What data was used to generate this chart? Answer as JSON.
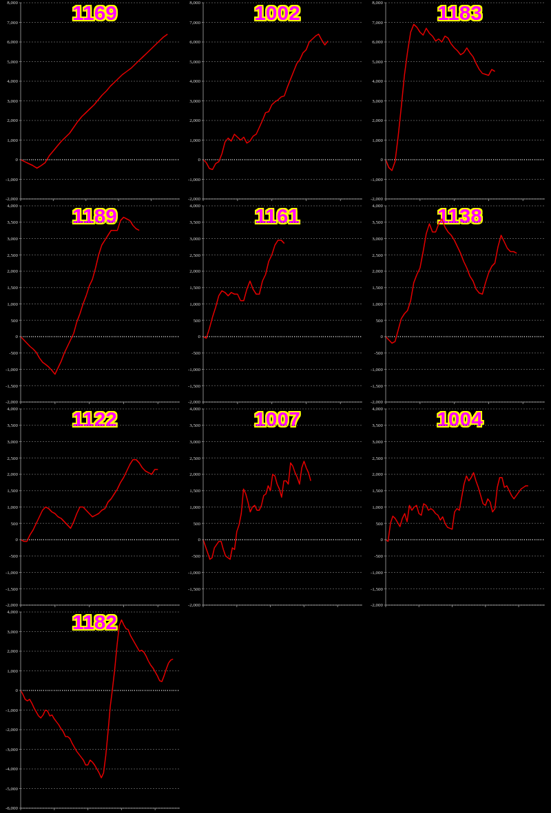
{
  "chart_data": [
    {
      "type": "line",
      "title": "1169",
      "categories": [
        null,
        null,
        null,
        null,
        null,
        null,
        null,
        null,
        null,
        null,
        null,
        null,
        null,
        null,
        null,
        null,
        null,
        null,
        null,
        null,
        null,
        null,
        null,
        null,
        null,
        null,
        null,
        null,
        null,
        null,
        null,
        null,
        null,
        null,
        null,
        null,
        null,
        null,
        null,
        null
      ],
      "series": [
        {
          "color": "#e60000",
          "values": [
            0,
            -100,
            -200,
            -300,
            -430,
            -300,
            -150,
            200,
            450,
            700,
            950,
            1150,
            1350,
            1650,
            1950,
            2200,
            2400,
            2600,
            2800,
            3050,
            3300,
            3500,
            3750,
            3950,
            4150,
            4350,
            4500,
            4650,
            4850,
            5050,
            5250,
            5450,
            5650,
            5850,
            6050,
            6250,
            6400,
            null,
            null,
            null
          ]
        }
      ],
      "ylim": [
        -2000,
        8000
      ],
      "yticks": [
        {
          "value": -2000,
          "label": "-2,000"
        },
        {
          "value": -1000,
          "label": "-1,000"
        },
        0,
        {
          "value": 1000,
          "label": "1,000"
        },
        {
          "value": 2000,
          "label": "2,000"
        },
        {
          "value": 3000,
          "label": "3,000"
        },
        {
          "value": 4000,
          "label": "4,000"
        },
        {
          "value": 5000,
          "label": "5,000"
        },
        {
          "value": 6000,
          "label": "6,000"
        },
        {
          "value": 7000,
          "label": "7,000"
        },
        {
          "value": 8000,
          "label": "8,000"
        }
      ],
      "grid": "y",
      "tick_labels": "y",
      "ref_lines": [
        {
          "axis": "y",
          "value": 0,
          "color": "#ffffff",
          "line_style": "dotted"
        }
      ]
    },
    {
      "type": "line",
      "title": "1002",
      "categories": [
        null,
        null,
        null,
        null,
        null,
        null,
        null,
        null,
        null,
        null,
        null,
        null,
        null,
        null,
        null,
        null,
        null,
        null,
        null,
        null,
        null,
        null,
        null,
        null,
        null,
        null,
        null,
        null,
        null,
        null,
        null,
        null,
        null,
        null,
        null,
        null,
        null,
        null,
        null,
        null,
        null,
        null,
        null,
        null,
        null,
        null,
        null,
        null,
        null,
        null,
        null,
        null
      ],
      "series": [
        {
          "color": "#e60000",
          "values": [
            0,
            -150,
            -450,
            -500,
            -200,
            -100,
            300,
            900,
            1100,
            950,
            1300,
            1150,
            1000,
            1150,
            850,
            950,
            1200,
            1300,
            1650,
            2000,
            2400,
            2450,
            2800,
            2950,
            3050,
            3200,
            3250,
            3700,
            4100,
            4500,
            4900,
            5100,
            5450,
            5600,
            6000,
            6150,
            6300,
            6400,
            6100,
            5850,
            6050,
            null,
            null,
            null,
            null,
            null,
            null,
            null,
            null,
            null,
            null,
            null
          ]
        }
      ],
      "ylim": [
        -2000,
        8000
      ],
      "yticks": [
        {
          "value": -2000,
          "label": "-2,000"
        },
        {
          "value": -1000,
          "label": "-1,000"
        },
        0,
        {
          "value": 1000,
          "label": "1,000"
        },
        {
          "value": 2000,
          "label": "2,000"
        },
        {
          "value": 3000,
          "label": "3,000"
        },
        {
          "value": 4000,
          "label": "4,000"
        },
        {
          "value": 5000,
          "label": "5,000"
        },
        {
          "value": 6000,
          "label": "6,000"
        },
        {
          "value": 7000,
          "label": "7,000"
        },
        {
          "value": 8000,
          "label": "8,000"
        }
      ],
      "grid": "y",
      "tick_labels": "y",
      "ref_lines": [
        {
          "axis": "y",
          "value": 0,
          "color": "#ffffff",
          "line_style": "dotted"
        }
      ]
    },
    {
      "type": "line",
      "title": "1183",
      "categories": [
        null,
        null,
        null,
        null,
        null,
        null,
        null,
        null,
        null,
        null,
        null,
        null,
        null,
        null,
        null,
        null,
        null,
        null,
        null,
        null,
        null,
        null,
        null,
        null,
        null,
        null,
        null,
        null,
        null,
        null,
        null,
        null,
        null,
        null,
        null,
        null,
        null,
        null,
        null,
        null,
        null,
        null,
        null,
        null,
        null,
        null,
        null,
        null,
        null,
        null,
        null,
        null
      ],
      "series": [
        {
          "color": "#e60000",
          "values": [
            0,
            -400,
            -550,
            -100,
            1200,
            2700,
            4300,
            5500,
            6500,
            6900,
            6750,
            6500,
            6350,
            6700,
            6450,
            6300,
            6050,
            6150,
            6000,
            6300,
            6200,
            5900,
            5700,
            5550,
            5350,
            5450,
            5700,
            5450,
            5250,
            4900,
            4600,
            4400,
            4350,
            4300,
            4600,
            4500,
            null,
            null,
            null,
            null,
            null,
            null,
            null,
            null,
            null,
            null,
            null,
            null,
            null,
            null,
            null,
            null
          ]
        }
      ],
      "ylim": [
        -2000,
        8000
      ],
      "yticks": [
        {
          "value": -2000,
          "label": "-2,000"
        },
        {
          "value": -1000,
          "label": "-1,000"
        },
        0,
        {
          "value": 1000,
          "label": "1,000"
        },
        {
          "value": 2000,
          "label": "2,000"
        },
        {
          "value": 3000,
          "label": "3,000"
        },
        {
          "value": 4000,
          "label": "4,000"
        },
        {
          "value": 5000,
          "label": "5,000"
        },
        {
          "value": 6000,
          "label": "6,000"
        },
        {
          "value": 7000,
          "label": "7,000"
        },
        {
          "value": 8000,
          "label": "8,000"
        }
      ],
      "grid": "y",
      "tick_labels": "y",
      "ref_lines": [
        {
          "axis": "y",
          "value": 0,
          "color": "#ffffff",
          "line_style": "dotted"
        }
      ]
    },
    {
      "type": "line",
      "title": "1189",
      "categories": [
        null,
        null,
        null,
        null,
        null,
        null,
        null,
        null,
        null,
        null,
        null,
        null,
        null,
        null,
        null,
        null,
        null,
        null,
        null,
        null,
        null,
        null,
        null,
        null,
        null,
        null,
        null,
        null,
        null,
        null,
        null,
        null,
        null,
        null,
        null,
        null,
        null,
        null,
        null,
        null,
        null,
        null,
        null,
        null,
        null,
        null,
        null,
        null,
        null,
        null,
        null,
        null
      ],
      "series": [
        {
          "color": "#e60000",
          "values": [
            0,
            -100,
            -200,
            -300,
            -380,
            -480,
            -650,
            -780,
            -850,
            -930,
            -1030,
            -1150,
            -950,
            -750,
            -500,
            -300,
            -100,
            100,
            450,
            700,
            1000,
            1250,
            1550,
            1750,
            2100,
            2500,
            2800,
            2950,
            3100,
            3250,
            3250,
            3250,
            3550,
            3650,
            3600,
            3550,
            3400,
            3300,
            3250,
            null,
            null,
            null,
            null,
            null,
            null,
            null,
            null,
            null,
            null,
            null,
            null,
            null
          ]
        }
      ],
      "ylim": [
        -2000,
        4000
      ],
      "yticks": [
        {
          "value": -2000,
          "label": "-2,000"
        },
        {
          "value": -1500,
          "label": "-1,500"
        },
        {
          "value": -1000,
          "label": "-1,000"
        },
        -500,
        0,
        500,
        {
          "value": 1000,
          "label": "1,000"
        },
        {
          "value": 1500,
          "label": "1,500"
        },
        {
          "value": 2000,
          "label": "2,000"
        },
        {
          "value": 2500,
          "label": "2,500"
        },
        {
          "value": 3000,
          "label": "3,000"
        },
        {
          "value": 3500,
          "label": "3,500"
        },
        {
          "value": 4000,
          "label": "4,000"
        }
      ],
      "grid": "y",
      "tick_labels": "y",
      "ref_lines": [
        {
          "axis": "y",
          "value": 0,
          "color": "#ffffff",
          "line_style": "dotted"
        }
      ]
    },
    {
      "type": "line",
      "title": "1161",
      "categories": [
        null,
        null,
        null,
        null,
        null,
        null,
        null,
        null,
        null,
        null,
        null,
        null,
        null,
        null,
        null,
        null,
        null,
        null,
        null,
        null,
        null,
        null,
        null,
        null,
        null,
        null,
        null,
        null,
        null,
        null,
        null,
        null,
        null,
        null,
        null,
        null,
        null,
        null,
        null,
        null,
        null,
        null,
        null,
        null,
        null,
        null,
        null,
        null,
        null,
        null,
        null,
        null
      ],
      "series": [
        {
          "color": "#e60000",
          "values": [
            0,
            -50,
            250,
            600,
            900,
            1250,
            1400,
            1350,
            1250,
            1350,
            1300,
            1300,
            1100,
            1100,
            1450,
            1700,
            1450,
            1300,
            1300,
            1700,
            1900,
            2300,
            2500,
            2800,
            2950,
            2950,
            2850,
            null,
            null,
            null,
            null,
            null,
            null,
            null,
            null,
            null,
            null,
            null,
            null,
            null,
            null,
            null,
            null,
            null,
            null,
            null,
            null,
            null,
            null,
            null,
            null,
            null
          ]
        }
      ],
      "ylim": [
        -2000,
        4000
      ],
      "yticks": [
        {
          "value": -2000,
          "label": "-2,000"
        },
        {
          "value": -1500,
          "label": "-1,500"
        },
        {
          "value": -1000,
          "label": "-1,000"
        },
        -500,
        0,
        500,
        {
          "value": 1000,
          "label": "1,000"
        },
        {
          "value": 1500,
          "label": "1,500"
        },
        {
          "value": 2000,
          "label": "2,000"
        },
        {
          "value": 2500,
          "label": "2,500"
        },
        {
          "value": 3000,
          "label": "3,000"
        },
        {
          "value": 3500,
          "label": "3,500"
        },
        {
          "value": 4000,
          "label": "4,000"
        }
      ],
      "grid": "y",
      "tick_labels": "y",
      "ref_lines": [
        {
          "axis": "y",
          "value": 0,
          "color": "#ffffff",
          "line_style": "dotted"
        }
      ]
    },
    {
      "type": "line",
      "title": "1138",
      "categories": [
        null,
        null,
        null,
        null,
        null,
        null,
        null,
        null,
        null,
        null,
        null,
        null,
        null,
        null,
        null,
        null,
        null,
        null,
        null,
        null,
        null,
        null,
        null,
        null,
        null,
        null,
        null,
        null,
        null,
        null,
        null,
        null,
        null,
        null,
        null,
        null,
        null,
        null,
        null,
        null,
        null,
        null,
        null,
        null,
        null,
        null,
        null,
        null,
        null,
        null,
        null,
        null
      ],
      "series": [
        {
          "color": "#e60000",
          "values": [
            0,
            -100,
            -200,
            -150,
            200,
            550,
            700,
            800,
            1100,
            1650,
            1900,
            2100,
            2600,
            3150,
            3450,
            3200,
            3200,
            3450,
            3600,
            3350,
            3200,
            3100,
            2950,
            2750,
            2550,
            2300,
            2100,
            1850,
            1700,
            1450,
            1330,
            1300,
            1650,
            1950,
            2150,
            2250,
            2750,
            3100,
            2900,
            2700,
            2600,
            2600,
            2550,
            null,
            null,
            null,
            null,
            null,
            null,
            null,
            null,
            null
          ]
        }
      ],
      "ylim": [
        -2000,
        4000
      ],
      "yticks": [
        {
          "value": -2000,
          "label": "-2,000"
        },
        {
          "value": -1500,
          "label": "-1,500"
        },
        {
          "value": -1000,
          "label": "-1,000"
        },
        -500,
        0,
        500,
        {
          "value": 1000,
          "label": "1,000"
        },
        {
          "value": 1500,
          "label": "1,500"
        },
        {
          "value": 2000,
          "label": "2,000"
        },
        {
          "value": 2500,
          "label": "2,500"
        },
        {
          "value": 3000,
          "label": "3,000"
        },
        {
          "value": 3500,
          "label": "3,500"
        },
        {
          "value": 4000,
          "label": "4,000"
        }
      ],
      "grid": "y",
      "tick_labels": "y",
      "ref_lines": [
        {
          "axis": "y",
          "value": 0,
          "color": "#ffffff",
          "line_style": "dotted"
        }
      ]
    },
    {
      "type": "line",
      "title": "1122",
      "categories": [
        null,
        null,
        null,
        null,
        null,
        null,
        null,
        null,
        null,
        null,
        null,
        null,
        null,
        null,
        null,
        null,
        null,
        null,
        null,
        null,
        null,
        null,
        null,
        null,
        null,
        null,
        null,
        null,
        null,
        null,
        null,
        null,
        null,
        null,
        null,
        null,
        null,
        null,
        null,
        null,
        null,
        null,
        null,
        null,
        null,
        null,
        null,
        null,
        null,
        null,
        null,
        null
      ],
      "series": [
        {
          "color": "#e60000",
          "values": [
            0,
            -50,
            -50,
            150,
            300,
            500,
            700,
            900,
            1000,
            950,
            850,
            800,
            700,
            650,
            550,
            450,
            350,
            550,
            800,
            1000,
            1000,
            900,
            800,
            700,
            750,
            800,
            900,
            950,
            1150,
            1250,
            1400,
            1550,
            1750,
            1900,
            2100,
            2300,
            2450,
            2450,
            2350,
            2200,
            2100,
            2050,
            2000,
            2150,
            2150,
            null,
            null,
            null,
            null,
            null,
            null,
            null
          ]
        }
      ],
      "ylim": [
        -2000,
        4000
      ],
      "yticks": [
        {
          "value": -2000,
          "label": "-2,000"
        },
        {
          "value": -1500,
          "label": "-1,500"
        },
        {
          "value": -1000,
          "label": "-1,000"
        },
        -500,
        0,
        500,
        {
          "value": 1000,
          "label": "1,000"
        },
        {
          "value": 1500,
          "label": "1,500"
        },
        {
          "value": 2000,
          "label": "2,000"
        },
        {
          "value": 2500,
          "label": "2,500"
        },
        {
          "value": 3000,
          "label": "3,000"
        },
        {
          "value": 3500,
          "label": "3,500"
        },
        {
          "value": 4000,
          "label": "4,000"
        }
      ],
      "grid": "y",
      "tick_labels": "y",
      "ref_lines": [
        {
          "axis": "y",
          "value": 0,
          "color": "#ffffff",
          "line_style": "dotted"
        }
      ]
    },
    {
      "type": "line",
      "title": "1007",
      "categories": [
        null,
        null,
        null,
        null,
        null,
        null,
        null,
        null,
        null,
        null,
        null,
        null,
        null,
        null,
        null,
        null,
        null,
        null,
        null,
        null,
        null,
        null,
        null,
        null,
        null,
        null,
        null,
        null,
        null,
        null,
        null,
        null,
        null,
        null,
        null,
        null,
        null,
        null,
        null,
        null,
        null,
        null,
        null,
        null,
        null,
        null,
        null,
        null,
        null,
        null,
        null,
        null,
        null,
        null,
        null,
        null,
        null,
        null,
        null,
        null,
        null,
        null,
        null,
        null,
        null,
        null,
        null,
        null,
        null,
        null,
        null,
        null
      ],
      "series": [
        {
          "color": "#e60000",
          "values": [
            0,
            -200,
            -400,
            -600,
            -550,
            -250,
            -150,
            -50,
            -50,
            -300,
            -500,
            -550,
            -600,
            -250,
            -300,
            250,
            450,
            800,
            1550,
            1400,
            1150,
            850,
            1000,
            1050,
            900,
            900,
            1050,
            1350,
            1400,
            1650,
            1500,
            2000,
            1950,
            1700,
            1550,
            1300,
            1800,
            1800,
            1700,
            2350,
            2250,
            2050,
            1900,
            1700,
            2200,
            2400,
            2200,
            2050,
            1800,
            null,
            null,
            null,
            null,
            null,
            null,
            null,
            null,
            null,
            null,
            null,
            null,
            null,
            null,
            null,
            null,
            null,
            null,
            null,
            null,
            null,
            null,
            null
          ]
        }
      ],
      "ylim": [
        -2000,
        4000
      ],
      "yticks": [
        {
          "value": -2000,
          "label": "-2,000"
        },
        {
          "value": -1500,
          "label": "-1,500"
        },
        {
          "value": -1000,
          "label": "-1,000"
        },
        -500,
        0,
        500,
        {
          "value": 1000,
          "label": "1,000"
        },
        {
          "value": 1500,
          "label": "1,500"
        },
        {
          "value": 2000,
          "label": "2,000"
        },
        {
          "value": 2500,
          "label": "2,500"
        },
        {
          "value": 3000,
          "label": "3,000"
        },
        {
          "value": 3500,
          "label": "3,500"
        },
        {
          "value": 4000,
          "label": "4,000"
        }
      ],
      "grid": "y",
      "tick_labels": "y",
      "ref_lines": [
        {
          "axis": "y",
          "value": 0,
          "color": "#ffffff",
          "line_style": "dotted"
        }
      ]
    },
    {
      "type": "line",
      "title": "1004",
      "categories": [
        null,
        null,
        null,
        null,
        null,
        null,
        null,
        null,
        null,
        null,
        null,
        null,
        null,
        null,
        null,
        null,
        null,
        null,
        null,
        null,
        null,
        null,
        null,
        null,
        null,
        null,
        null,
        null,
        null,
        null,
        null,
        null,
        null,
        null,
        null,
        null,
        null,
        null,
        null,
        null,
        null,
        null,
        null,
        null,
        null,
        null,
        null,
        null,
        null,
        null,
        null,
        null,
        null,
        null,
        null,
        null,
        null,
        null,
        null,
        null,
        null,
        null,
        null,
        null,
        null,
        null,
        null,
        null
      ],
      "series": [
        {
          "color": "#e60000",
          "values": [
            0,
            -50,
            500,
            720,
            650,
            530,
            400,
            650,
            800,
            550,
            1050,
            900,
            1000,
            1050,
            800,
            750,
            1100,
            1050,
            900,
            950,
            900,
            800,
            750,
            600,
            700,
            500,
            380,
            350,
            320,
            850,
            950,
            900,
            1300,
            1700,
            1950,
            1800,
            1900,
            2050,
            1800,
            1600,
            1350,
            1100,
            1050,
            1250,
            1150,
            850,
            950,
            1600,
            1900,
            1900,
            1600,
            1650,
            1500,
            1350,
            1250,
            1350,
            1450,
            1550,
            1600,
            1650,
            1650,
            null,
            null,
            null,
            null,
            null,
            null,
            null
          ]
        }
      ],
      "ylim": [
        -2000,
        4000
      ],
      "yticks": [
        {
          "value": -2000,
          "label": "-2,000"
        },
        {
          "value": -1500,
          "label": "-1,500"
        },
        {
          "value": -1000,
          "label": "-1,000"
        },
        -500,
        0,
        500,
        {
          "value": 1000,
          "label": "1,000"
        },
        {
          "value": 1500,
          "label": "1,500"
        },
        {
          "value": 2000,
          "label": "2,000"
        },
        {
          "value": 2500,
          "label": "2,500"
        },
        {
          "value": 3000,
          "label": "3,000"
        },
        {
          "value": 3500,
          "label": "3,500"
        },
        {
          "value": 4000,
          "label": "4,000"
        }
      ],
      "grid": "y",
      "tick_labels": "y",
      "ref_lines": [
        {
          "axis": "y",
          "value": 0,
          "color": "#ffffff",
          "line_style": "dotted"
        }
      ]
    },
    {
      "type": "line",
      "title": "1182",
      "categories": [
        null,
        null,
        null,
        null,
        null,
        null,
        null,
        null,
        null,
        null,
        null,
        null,
        null,
        null,
        null,
        null,
        null,
        null,
        null,
        null,
        null,
        null,
        null,
        null,
        null,
        null,
        null,
        null,
        null,
        null,
        null,
        null,
        null,
        null,
        null,
        null,
        null,
        null,
        null,
        null,
        null,
        null,
        null,
        null,
        null,
        null,
        null,
        null,
        null,
        null,
        null,
        null,
        null,
        null,
        null,
        null,
        null,
        null,
        null,
        null,
        null,
        null,
        null,
        null,
        null,
        null,
        null,
        null,
        null,
        null,
        null,
        null
      ],
      "series": [
        {
          "color": "#e60000",
          "values": [
            0,
            -200,
            -450,
            -530,
            -450,
            -650,
            -900,
            -1100,
            -1300,
            -1400,
            -1250,
            -1000,
            -1050,
            -1300,
            -1250,
            -1450,
            -1600,
            -1750,
            -1950,
            -2100,
            -2350,
            -2350,
            -2450,
            -2700,
            -2900,
            -3100,
            -3250,
            -3400,
            -3550,
            -3800,
            -3800,
            -3550,
            -3650,
            -3800,
            -4000,
            -4200,
            -4450,
            -4200,
            -3300,
            -2100,
            -800,
            100,
            1100,
            2300,
            3300,
            3600,
            3350,
            3150,
            3100,
            2800,
            2600,
            2400,
            2200,
            2000,
            2050,
            1950,
            1750,
            1500,
            1300,
            1150,
            950,
            750,
            500,
            450,
            750,
            1100,
            1400,
            1550,
            1600,
            null,
            null,
            null
          ]
        }
      ],
      "ylim": [
        -6000,
        4000
      ],
      "yticks": [
        {
          "value": -6000,
          "label": "-6,000"
        },
        {
          "value": -5000,
          "label": "-5,000"
        },
        {
          "value": -4000,
          "label": "-4,000"
        },
        {
          "value": -3000,
          "label": "-3,000"
        },
        {
          "value": -2000,
          "label": "-2,000"
        },
        {
          "value": -1000,
          "label": "-1,000"
        },
        0,
        {
          "value": 1000,
          "label": "1,000"
        },
        {
          "value": 2000,
          "label": "2,000"
        },
        {
          "value": 3000,
          "label": "3,000"
        },
        {
          "value": 4000,
          "label": "4,000"
        }
      ],
      "grid": "y",
      "tick_labels": "y",
      "ref_lines": [
        {
          "axis": "y",
          "value": 0,
          "color": "#ffffff",
          "line_style": "dotted"
        }
      ]
    }
  ]
}
